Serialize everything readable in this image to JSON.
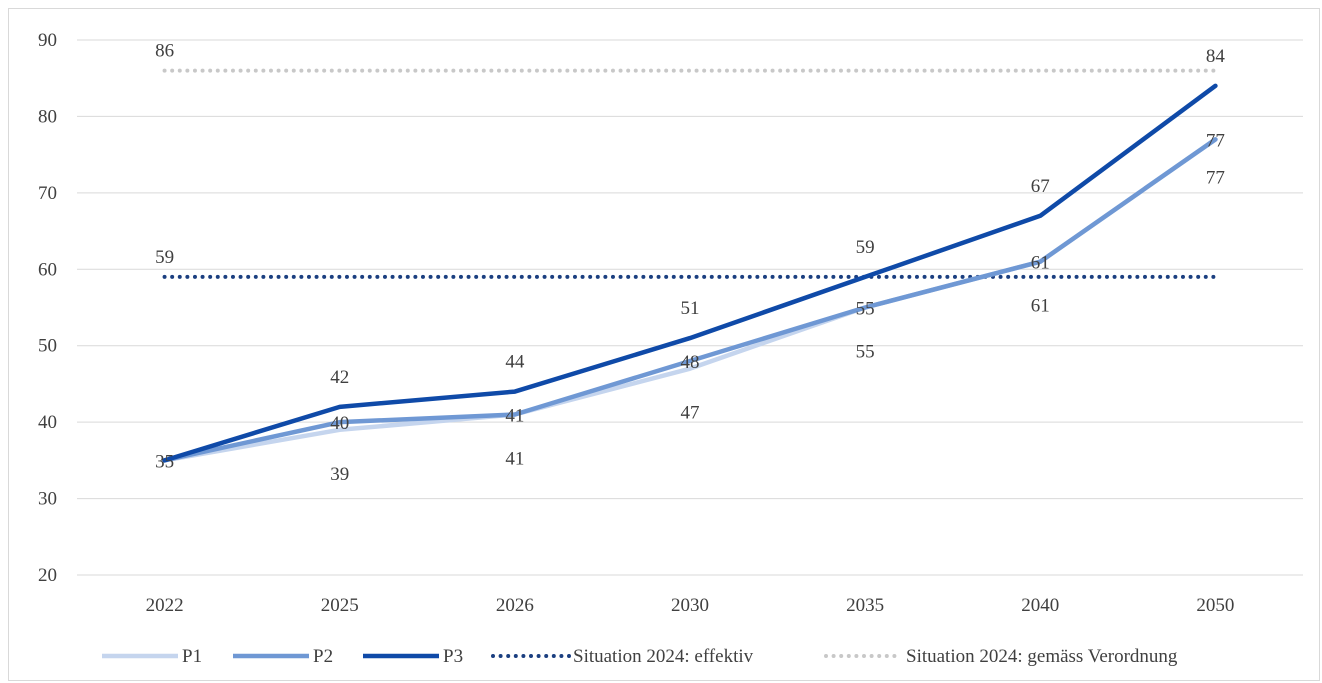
{
  "chart_data": {
    "type": "line",
    "categories": [
      "2022",
      "2025",
      "2026",
      "2030",
      "2035",
      "2040",
      "2050"
    ],
    "ylim": [
      20,
      90
    ],
    "yticks": [
      20,
      30,
      40,
      50,
      60,
      70,
      80,
      90
    ],
    "grid": true,
    "legend_position": "bottom",
    "series": [
      {
        "name": "P1",
        "values": [
          35,
          39,
          41,
          47,
          55,
          61,
          77
        ],
        "color": "#c5d5ee",
        "style": "solid",
        "labels": [
          "",
          "39",
          "41",
          "47",
          "55",
          "61",
          "77"
        ]
      },
      {
        "name": "P2",
        "values": [
          35,
          40,
          41,
          48,
          55,
          61,
          77
        ],
        "color": "#6f98d4",
        "style": "solid",
        "labels": [
          "",
          "40",
          "41",
          "48",
          "55",
          "61",
          "77"
        ]
      },
      {
        "name": "P3",
        "values": [
          35,
          42,
          44,
          51,
          59,
          67,
          84
        ],
        "color": "#0f4aa8",
        "style": "solid",
        "labels": [
          "35",
          "42",
          "44",
          "51",
          "59",
          "67",
          "84"
        ]
      },
      {
        "name": "Situation 2024: effektiv",
        "values": [
          59,
          59,
          59,
          59,
          59,
          59,
          59
        ],
        "color": "#1b3f80",
        "style": "dotted",
        "labels": [
          "59",
          "",
          "",
          "",
          "",
          "",
          ""
        ]
      },
      {
        "name": "Situation 2024: gemäss Verordnung",
        "values": [
          86,
          86,
          86,
          86,
          86,
          86,
          86
        ],
        "color": "#c8c8c8",
        "style": "dotted",
        "labels": [
          "86",
          "",
          "",
          "",
          "",
          "",
          ""
        ]
      }
    ]
  }
}
